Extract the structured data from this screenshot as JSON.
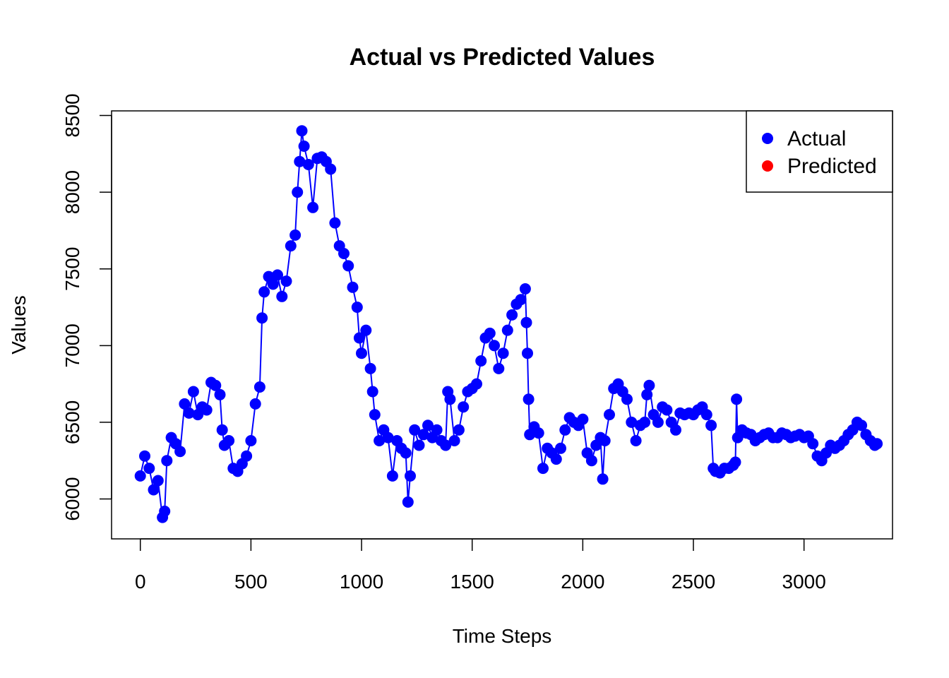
{
  "chart_data": {
    "type": "line",
    "title": "Actual vs Predicted Values",
    "xlabel": "Time Steps",
    "ylabel": "Values",
    "xlim": [
      -130,
      3400
    ],
    "ylim": [
      5740,
      8530
    ],
    "x_ticks": [
      0,
      500,
      1000,
      1500,
      2000,
      2500,
      3000
    ],
    "y_ticks": [
      6000,
      6500,
      7000,
      7500,
      8000,
      8500
    ],
    "legend_position": "top-right",
    "grid": false,
    "series": [
      {
        "name": "Actual",
        "color": "#0000ff",
        "style": "points-and-line",
        "points": [
          [
            0,
            6150
          ],
          [
            20,
            6280
          ],
          [
            40,
            6200
          ],
          [
            60,
            6060
          ],
          [
            80,
            6120
          ],
          [
            100,
            5880
          ],
          [
            110,
            5920
          ],
          [
            120,
            6250
          ],
          [
            140,
            6400
          ],
          [
            160,
            6360
          ],
          [
            180,
            6310
          ],
          [
            200,
            6620
          ],
          [
            220,
            6560
          ],
          [
            240,
            6700
          ],
          [
            260,
            6550
          ],
          [
            280,
            6600
          ],
          [
            300,
            6580
          ],
          [
            320,
            6760
          ],
          [
            340,
            6740
          ],
          [
            360,
            6680
          ],
          [
            370,
            6450
          ],
          [
            380,
            6350
          ],
          [
            400,
            6380
          ],
          [
            420,
            6200
          ],
          [
            440,
            6180
          ],
          [
            460,
            6230
          ],
          [
            480,
            6280
          ],
          [
            500,
            6380
          ],
          [
            520,
            6620
          ],
          [
            540,
            6730
          ],
          [
            550,
            7180
          ],
          [
            560,
            7350
          ],
          [
            580,
            7450
          ],
          [
            600,
            7400
          ],
          [
            620,
            7460
          ],
          [
            640,
            7320
          ],
          [
            660,
            7420
          ],
          [
            680,
            7650
          ],
          [
            700,
            7720
          ],
          [
            710,
            8000
          ],
          [
            720,
            8200
          ],
          [
            730,
            8400
          ],
          [
            740,
            8300
          ],
          [
            760,
            8180
          ],
          [
            780,
            7900
          ],
          [
            800,
            8220
          ],
          [
            820,
            8230
          ],
          [
            840,
            8200
          ],
          [
            860,
            8150
          ],
          [
            880,
            7800
          ],
          [
            900,
            7650
          ],
          [
            920,
            7600
          ],
          [
            940,
            7520
          ],
          [
            960,
            7380
          ],
          [
            980,
            7250
          ],
          [
            990,
            7050
          ],
          [
            1000,
            6950
          ],
          [
            1020,
            7100
          ],
          [
            1040,
            6850
          ],
          [
            1050,
            6700
          ],
          [
            1060,
            6550
          ],
          [
            1080,
            6380
          ],
          [
            1100,
            6450
          ],
          [
            1120,
            6400
          ],
          [
            1140,
            6150
          ],
          [
            1160,
            6380
          ],
          [
            1180,
            6330
          ],
          [
            1200,
            6300
          ],
          [
            1210,
            5980
          ],
          [
            1220,
            6150
          ],
          [
            1240,
            6450
          ],
          [
            1260,
            6350
          ],
          [
            1280,
            6420
          ],
          [
            1300,
            6480
          ],
          [
            1320,
            6400
          ],
          [
            1340,
            6450
          ],
          [
            1360,
            6380
          ],
          [
            1380,
            6350
          ],
          [
            1390,
            6700
          ],
          [
            1400,
            6650
          ],
          [
            1420,
            6380
          ],
          [
            1440,
            6450
          ],
          [
            1460,
            6600
          ],
          [
            1480,
            6700
          ],
          [
            1500,
            6720
          ],
          [
            1520,
            6750
          ],
          [
            1540,
            6900
          ],
          [
            1560,
            7050
          ],
          [
            1580,
            7080
          ],
          [
            1600,
            7000
          ],
          [
            1620,
            6850
          ],
          [
            1640,
            6950
          ],
          [
            1660,
            7100
          ],
          [
            1680,
            7200
          ],
          [
            1700,
            7270
          ],
          [
            1720,
            7300
          ],
          [
            1740,
            7370
          ],
          [
            1745,
            7150
          ],
          [
            1750,
            6950
          ],
          [
            1755,
            6650
          ],
          [
            1760,
            6420
          ],
          [
            1780,
            6470
          ],
          [
            1800,
            6430
          ],
          [
            1820,
            6200
          ],
          [
            1840,
            6330
          ],
          [
            1860,
            6300
          ],
          [
            1880,
            6260
          ],
          [
            1900,
            6330
          ],
          [
            1920,
            6450
          ],
          [
            1940,
            6530
          ],
          [
            1960,
            6500
          ],
          [
            1980,
            6480
          ],
          [
            2000,
            6520
          ],
          [
            2020,
            6300
          ],
          [
            2040,
            6250
          ],
          [
            2060,
            6350
          ],
          [
            2080,
            6400
          ],
          [
            2090,
            6130
          ],
          [
            2100,
            6380
          ],
          [
            2120,
            6550
          ],
          [
            2140,
            6720
          ],
          [
            2160,
            6750
          ],
          [
            2180,
            6700
          ],
          [
            2200,
            6650
          ],
          [
            2220,
            6500
          ],
          [
            2240,
            6380
          ],
          [
            2260,
            6480
          ],
          [
            2280,
            6500
          ],
          [
            2290,
            6680
          ],
          [
            2300,
            6740
          ],
          [
            2320,
            6550
          ],
          [
            2340,
            6500
          ],
          [
            2360,
            6600
          ],
          [
            2380,
            6580
          ],
          [
            2400,
            6500
          ],
          [
            2420,
            6450
          ],
          [
            2440,
            6560
          ],
          [
            2460,
            6550
          ],
          [
            2480,
            6560
          ],
          [
            2500,
            6550
          ],
          [
            2520,
            6580
          ],
          [
            2540,
            6600
          ],
          [
            2560,
            6550
          ],
          [
            2580,
            6480
          ],
          [
            2590,
            6200
          ],
          [
            2600,
            6180
          ],
          [
            2620,
            6170
          ],
          [
            2640,
            6200
          ],
          [
            2660,
            6200
          ],
          [
            2680,
            6220
          ],
          [
            2690,
            6240
          ],
          [
            2695,
            6650
          ],
          [
            2700,
            6400
          ],
          [
            2720,
            6450
          ],
          [
            2740,
            6430
          ],
          [
            2760,
            6420
          ],
          [
            2780,
            6380
          ],
          [
            2800,
            6400
          ],
          [
            2820,
            6420
          ],
          [
            2840,
            6430
          ],
          [
            2860,
            6400
          ],
          [
            2880,
            6400
          ],
          [
            2900,
            6430
          ],
          [
            2920,
            6420
          ],
          [
            2940,
            6400
          ],
          [
            2960,
            6410
          ],
          [
            2980,
            6420
          ],
          [
            3000,
            6400
          ],
          [
            3020,
            6410
          ],
          [
            3040,
            6360
          ],
          [
            3060,
            6280
          ],
          [
            3080,
            6250
          ],
          [
            3100,
            6300
          ],
          [
            3120,
            6350
          ],
          [
            3140,
            6330
          ],
          [
            3160,
            6350
          ],
          [
            3180,
            6380
          ],
          [
            3200,
            6420
          ],
          [
            3220,
            6450
          ],
          [
            3240,
            6500
          ],
          [
            3260,
            6480
          ],
          [
            3280,
            6420
          ],
          [
            3300,
            6380
          ],
          [
            3320,
            6350
          ],
          [
            3330,
            6360
          ]
        ]
      },
      {
        "name": "Predicted",
        "color": "#ff0000",
        "style": "points",
        "points": []
      }
    ]
  }
}
